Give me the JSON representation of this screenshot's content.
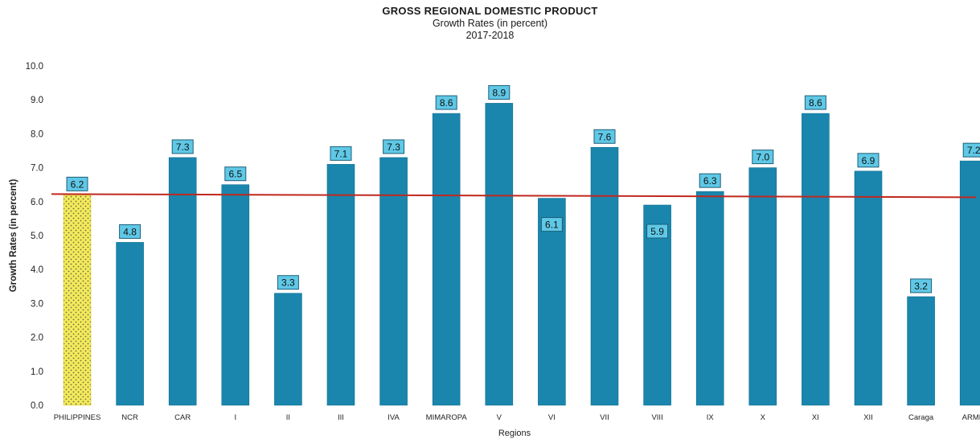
{
  "chart_data": {
    "type": "bar",
    "title": "GROSS REGIONAL DOMESTIC PRODUCT",
    "subtitle": "Growth Rates (in percent)",
    "period": "2017-2018",
    "xlabel": "Regions",
    "ylabel": "Growth Rates (in percent)",
    "ylim": [
      0,
      10
    ],
    "yticks": [
      "0.0",
      "1.0",
      "2.0",
      "3.0",
      "4.0",
      "5.0",
      "6.0",
      "7.0",
      "8.0",
      "9.0",
      "10.0"
    ],
    "categories": [
      "PHILIPPINES",
      "NCR",
      "CAR",
      "I",
      "II",
      "III",
      "IVA",
      "MIMAROPA",
      "V",
      "VI",
      "VII",
      "VIII",
      "IX",
      "X",
      "XI",
      "XII",
      "Caraga",
      "ARMM"
    ],
    "values": [
      6.2,
      4.8,
      7.3,
      6.5,
      3.3,
      7.1,
      7.3,
      8.6,
      8.9,
      6.1,
      7.6,
      5.9,
      6.3,
      7.0,
      8.6,
      6.9,
      3.2,
      7.2
    ],
    "data_labels": [
      "6.2",
      "4.8",
      "7.3",
      "6.5",
      "3.3",
      "7.1",
      "7.3",
      "8.6",
      "8.9",
      "6.1",
      "7.6",
      "5.9",
      "6.3",
      "7.0",
      "8.6",
      "6.9",
      "3.2",
      "7.2"
    ],
    "label_inside": [
      false,
      false,
      false,
      false,
      false,
      false,
      false,
      false,
      false,
      true,
      false,
      true,
      false,
      false,
      false,
      false,
      false,
      false
    ],
    "reference_line": 6.2,
    "colors": {
      "bar": "#1a86ad",
      "highlight_bar": "#f3ea5a",
      "label_box": "#5fc8e6",
      "reference_line": "#c0281f"
    },
    "grid": false,
    "legend": "none"
  }
}
